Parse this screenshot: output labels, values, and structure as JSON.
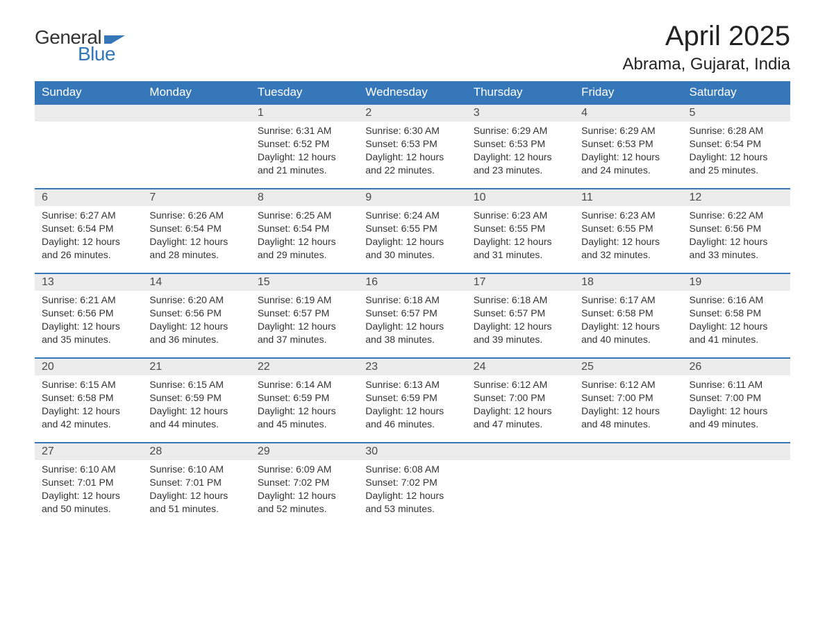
{
  "logo": {
    "word1": "General",
    "word2": "Blue",
    "icon_color": "#3577b8",
    "text_color_1": "#333333",
    "text_color_2": "#3577b8"
  },
  "title": "April 2025",
  "location": "Abrama, Gujarat, India",
  "colors": {
    "header_bg": "#3577b8",
    "header_fg": "#ffffff",
    "daynum_bg": "#ececec",
    "row_border": "#3577b8",
    "body_text": "#333333",
    "title_text": "#222222",
    "page_bg": "#ffffff"
  },
  "typography": {
    "title_fontsize": 40,
    "location_fontsize": 24,
    "weekday_fontsize": 17,
    "daynum_fontsize": 16,
    "body_fontsize": 14
  },
  "weekdays": [
    "Sunday",
    "Monday",
    "Tuesday",
    "Wednesday",
    "Thursday",
    "Friday",
    "Saturday"
  ],
  "weeks": [
    [
      {
        "blank": true
      },
      {
        "blank": true
      },
      {
        "day": "1",
        "sunrise": "6:31 AM",
        "sunset": "6:52 PM",
        "daylight": "12 hours and 21 minutes."
      },
      {
        "day": "2",
        "sunrise": "6:30 AM",
        "sunset": "6:53 PM",
        "daylight": "12 hours and 22 minutes."
      },
      {
        "day": "3",
        "sunrise": "6:29 AM",
        "sunset": "6:53 PM",
        "daylight": "12 hours and 23 minutes."
      },
      {
        "day": "4",
        "sunrise": "6:29 AM",
        "sunset": "6:53 PM",
        "daylight": "12 hours and 24 minutes."
      },
      {
        "day": "5",
        "sunrise": "6:28 AM",
        "sunset": "6:54 PM",
        "daylight": "12 hours and 25 minutes."
      }
    ],
    [
      {
        "day": "6",
        "sunrise": "6:27 AM",
        "sunset": "6:54 PM",
        "daylight": "12 hours and 26 minutes."
      },
      {
        "day": "7",
        "sunrise": "6:26 AM",
        "sunset": "6:54 PM",
        "daylight": "12 hours and 28 minutes."
      },
      {
        "day": "8",
        "sunrise": "6:25 AM",
        "sunset": "6:54 PM",
        "daylight": "12 hours and 29 minutes."
      },
      {
        "day": "9",
        "sunrise": "6:24 AM",
        "sunset": "6:55 PM",
        "daylight": "12 hours and 30 minutes."
      },
      {
        "day": "10",
        "sunrise": "6:23 AM",
        "sunset": "6:55 PM",
        "daylight": "12 hours and 31 minutes."
      },
      {
        "day": "11",
        "sunrise": "6:23 AM",
        "sunset": "6:55 PM",
        "daylight": "12 hours and 32 minutes."
      },
      {
        "day": "12",
        "sunrise": "6:22 AM",
        "sunset": "6:56 PM",
        "daylight": "12 hours and 33 minutes."
      }
    ],
    [
      {
        "day": "13",
        "sunrise": "6:21 AM",
        "sunset": "6:56 PM",
        "daylight": "12 hours and 35 minutes."
      },
      {
        "day": "14",
        "sunrise": "6:20 AM",
        "sunset": "6:56 PM",
        "daylight": "12 hours and 36 minutes."
      },
      {
        "day": "15",
        "sunrise": "6:19 AM",
        "sunset": "6:57 PM",
        "daylight": "12 hours and 37 minutes."
      },
      {
        "day": "16",
        "sunrise": "6:18 AM",
        "sunset": "6:57 PM",
        "daylight": "12 hours and 38 minutes."
      },
      {
        "day": "17",
        "sunrise": "6:18 AM",
        "sunset": "6:57 PM",
        "daylight": "12 hours and 39 minutes."
      },
      {
        "day": "18",
        "sunrise": "6:17 AM",
        "sunset": "6:58 PM",
        "daylight": "12 hours and 40 minutes."
      },
      {
        "day": "19",
        "sunrise": "6:16 AM",
        "sunset": "6:58 PM",
        "daylight": "12 hours and 41 minutes."
      }
    ],
    [
      {
        "day": "20",
        "sunrise": "6:15 AM",
        "sunset": "6:58 PM",
        "daylight": "12 hours and 42 minutes."
      },
      {
        "day": "21",
        "sunrise": "6:15 AM",
        "sunset": "6:59 PM",
        "daylight": "12 hours and 44 minutes."
      },
      {
        "day": "22",
        "sunrise": "6:14 AM",
        "sunset": "6:59 PM",
        "daylight": "12 hours and 45 minutes."
      },
      {
        "day": "23",
        "sunrise": "6:13 AM",
        "sunset": "6:59 PM",
        "daylight": "12 hours and 46 minutes."
      },
      {
        "day": "24",
        "sunrise": "6:12 AM",
        "sunset": "7:00 PM",
        "daylight": "12 hours and 47 minutes."
      },
      {
        "day": "25",
        "sunrise": "6:12 AM",
        "sunset": "7:00 PM",
        "daylight": "12 hours and 48 minutes."
      },
      {
        "day": "26",
        "sunrise": "6:11 AM",
        "sunset": "7:00 PM",
        "daylight": "12 hours and 49 minutes."
      }
    ],
    [
      {
        "day": "27",
        "sunrise": "6:10 AM",
        "sunset": "7:01 PM",
        "daylight": "12 hours and 50 minutes."
      },
      {
        "day": "28",
        "sunrise": "6:10 AM",
        "sunset": "7:01 PM",
        "daylight": "12 hours and 51 minutes."
      },
      {
        "day": "29",
        "sunrise": "6:09 AM",
        "sunset": "7:02 PM",
        "daylight": "12 hours and 52 minutes."
      },
      {
        "day": "30",
        "sunrise": "6:08 AM",
        "sunset": "7:02 PM",
        "daylight": "12 hours and 53 minutes."
      },
      {
        "blank": true
      },
      {
        "blank": true
      },
      {
        "blank": true
      }
    ]
  ],
  "labels": {
    "sunrise_prefix": "Sunrise: ",
    "sunset_prefix": "Sunset: ",
    "daylight_prefix": "Daylight: "
  }
}
